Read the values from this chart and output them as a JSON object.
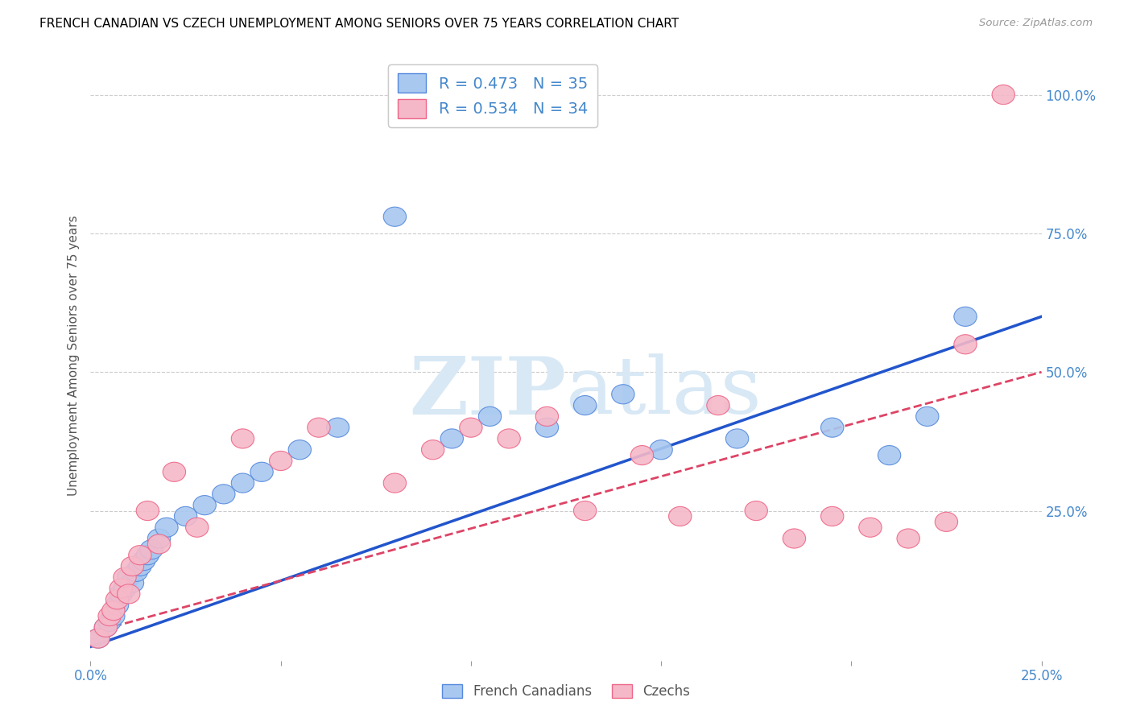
{
  "title": "FRENCH CANADIAN VS CZECH UNEMPLOYMENT AMONG SENIORS OVER 75 YEARS CORRELATION CHART",
  "source": "Source: ZipAtlas.com",
  "ylabel": "Unemployment Among Seniors over 75 years",
  "xlim": [
    0.0,
    0.25
  ],
  "ylim": [
    -0.02,
    1.08
  ],
  "xticks": [
    0.0,
    0.05,
    0.1,
    0.15,
    0.2,
    0.25
  ],
  "xticklabels": [
    "0.0%",
    "",
    "",
    "",
    "",
    "25.0%"
  ],
  "yticks_left": [],
  "yticks_right": [
    0.25,
    0.5,
    0.75,
    1.0
  ],
  "yticklabels_right": [
    "25.0%",
    "50.0%",
    "75.0%",
    "100.0%"
  ],
  "blue_R": 0.473,
  "blue_N": 35,
  "pink_R": 0.534,
  "pink_N": 34,
  "blue_color": "#A8C8F0",
  "pink_color": "#F5B8C8",
  "blue_edge_color": "#5588DD",
  "pink_edge_color": "#EE6688",
  "blue_line_color": "#2255CC",
  "pink_line_color": "#DD4466",
  "watermark_color": "#D8E8F5",
  "blue_scatter_x": [
    0.002,
    0.004,
    0.005,
    0.006,
    0.007,
    0.008,
    0.009,
    0.01,
    0.011,
    0.012,
    0.013,
    0.014,
    0.015,
    0.016,
    0.018,
    0.02,
    0.025,
    0.03,
    0.035,
    0.04,
    0.045,
    0.055,
    0.065,
    0.08,
    0.095,
    0.105,
    0.12,
    0.13,
    0.14,
    0.15,
    0.17,
    0.195,
    0.21,
    0.22,
    0.23
  ],
  "blue_scatter_y": [
    0.02,
    0.04,
    0.05,
    0.06,
    0.08,
    0.1,
    0.11,
    0.13,
    0.12,
    0.14,
    0.15,
    0.16,
    0.17,
    0.18,
    0.2,
    0.22,
    0.24,
    0.26,
    0.28,
    0.3,
    0.32,
    0.36,
    0.4,
    0.78,
    0.38,
    0.42,
    0.4,
    0.44,
    0.46,
    0.36,
    0.38,
    0.4,
    0.35,
    0.42,
    0.6
  ],
  "pink_scatter_x": [
    0.002,
    0.004,
    0.005,
    0.006,
    0.007,
    0.008,
    0.009,
    0.01,
    0.011,
    0.013,
    0.015,
    0.018,
    0.022,
    0.028,
    0.04,
    0.05,
    0.06,
    0.08,
    0.09,
    0.1,
    0.11,
    0.12,
    0.13,
    0.145,
    0.155,
    0.165,
    0.175,
    0.185,
    0.195,
    0.205,
    0.215,
    0.225,
    0.23,
    0.24
  ],
  "pink_scatter_y": [
    0.02,
    0.04,
    0.06,
    0.07,
    0.09,
    0.11,
    0.13,
    0.1,
    0.15,
    0.17,
    0.25,
    0.19,
    0.32,
    0.22,
    0.38,
    0.34,
    0.4,
    0.3,
    0.36,
    0.4,
    0.38,
    0.42,
    0.25,
    0.35,
    0.24,
    0.44,
    0.25,
    0.2,
    0.24,
    0.22,
    0.2,
    0.23,
    0.55,
    1.0
  ],
  "blue_trend_x": [
    0.0,
    0.25
  ],
  "blue_trend_y": [
    0.005,
    0.6
  ],
  "pink_trend_x": [
    0.0,
    0.25
  ],
  "pink_trend_y": [
    0.03,
    0.5
  ]
}
